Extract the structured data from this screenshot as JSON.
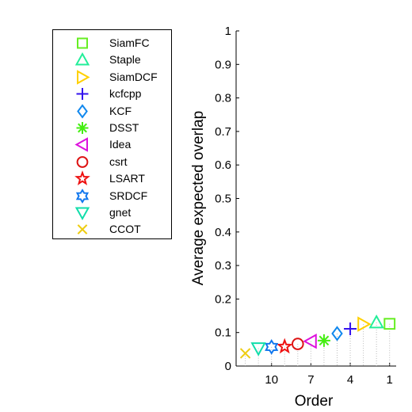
{
  "chart_data": {
    "type": "scatter",
    "title": "",
    "xlabel": "Order",
    "ylabel": "Average expected overlap",
    "ylim": [
      0,
      1
    ],
    "yticks": [
      "0",
      "0.1",
      "0.2",
      "0.3",
      "0.4",
      "0.5",
      "0.6",
      "0.7",
      "0.8",
      "0.9",
      "1"
    ],
    "xticks": [
      {
        "value": 10,
        "label": "10"
      },
      {
        "value": 7,
        "label": "7"
      },
      {
        "value": 4,
        "label": "4"
      },
      {
        "value": 1,
        "label": "1"
      }
    ],
    "xlim": [
      12.7,
      0.5
    ],
    "grid": false,
    "legend_position": "outside-left",
    "series": [
      {
        "name": "SiamFC",
        "order": 1,
        "value": 0.126,
        "marker": "square",
        "color": "#66ee22"
      },
      {
        "name": "Staple",
        "order": 2,
        "value": 0.13,
        "marker": "triangle-up",
        "color": "#22ee99"
      },
      {
        "name": "SiamDCF",
        "order": 3,
        "value": 0.125,
        "marker": "triangle-right",
        "color": "#ffd000"
      },
      {
        "name": "kcfcpp",
        "order": 4,
        "value": 0.111,
        "marker": "plus",
        "color": "#3311ee"
      },
      {
        "name": "KCF",
        "order": 5,
        "value": 0.097,
        "marker": "diamond",
        "color": "#1188ee"
      },
      {
        "name": "DSST",
        "order": 6,
        "value": 0.076,
        "marker": "asterisk",
        "color": "#44ee11"
      },
      {
        "name": "Idea",
        "order": 7,
        "value": 0.074,
        "marker": "triangle-left",
        "color": "#dd11dd"
      },
      {
        "name": "csrt",
        "order": 8,
        "value": 0.066,
        "marker": "circle",
        "color": "#dd1111"
      },
      {
        "name": "LSART",
        "order": 9,
        "value": 0.058,
        "marker": "pentagram",
        "color": "#ee1111"
      },
      {
        "name": "SRDCF",
        "order": 10,
        "value": 0.057,
        "marker": "hexagram",
        "color": "#1177ee"
      },
      {
        "name": "gnet",
        "order": 11,
        "value": 0.053,
        "marker": "triangle-down",
        "color": "#11ddaa"
      },
      {
        "name": "CCOT",
        "order": 12,
        "value": 0.038,
        "marker": "x",
        "color": "#eecc11"
      }
    ]
  }
}
